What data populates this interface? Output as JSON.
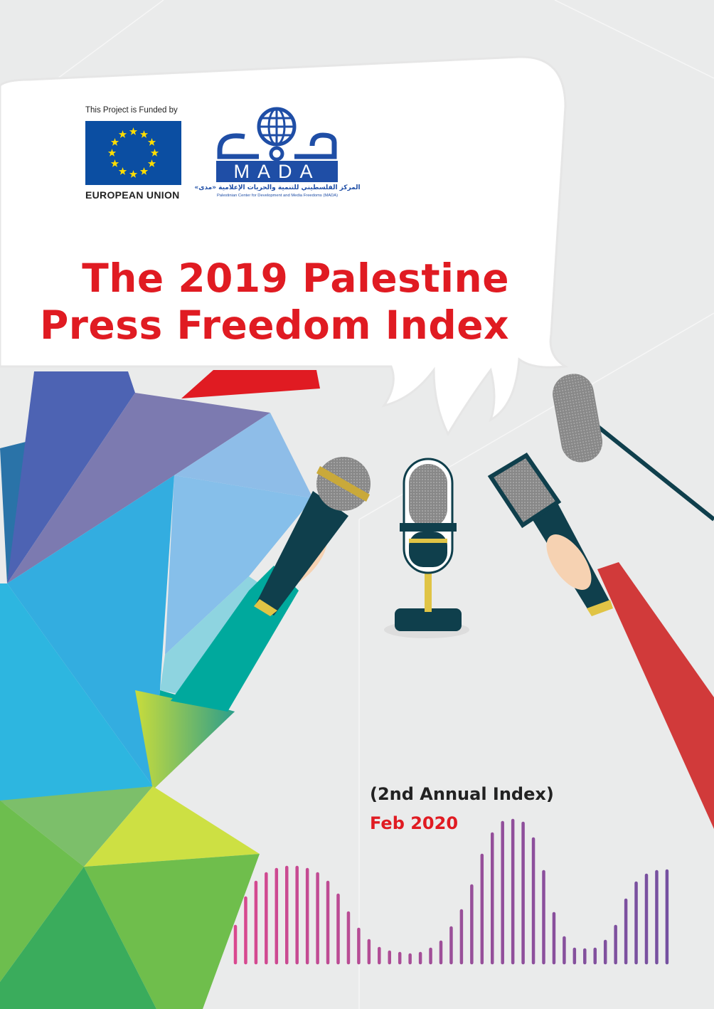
{
  "funder": {
    "funded_by": "This Project is Funded by",
    "name": "EUROPEAN UNION"
  },
  "partner": {
    "logo_text": "MADA",
    "arabic_name": "المركز الفلسطيني للتنمية والحريات الإعلامية «مدى»",
    "english_name": "Palestinian Center for Development and Media Freedoms (MADA)",
    "brand_color": "#1f4ea6"
  },
  "cover": {
    "title_line1": "The 2019 Palestine",
    "title_line2": "Press Freedom Index",
    "edition": "(2nd Annual Index)",
    "date": "Feb 2020",
    "accent_color": "#e01b22"
  }
}
